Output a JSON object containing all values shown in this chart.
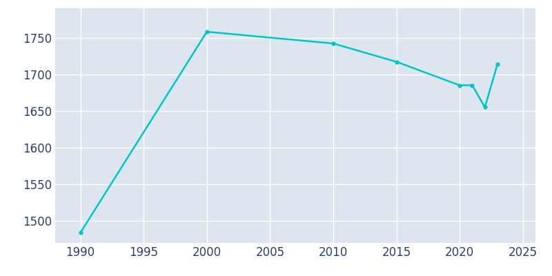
{
  "years": [
    1990,
    2000,
    2010,
    2015,
    2020,
    2021,
    2022,
    2023
  ],
  "population": [
    1484,
    1758,
    1742,
    1717,
    1685,
    1685,
    1655,
    1714
  ],
  "line_color": "#00C5C8",
  "plot_background_color": "#DDE6EF",
  "fig_background_color": "#ffffff",
  "grid_color": "#ffffff",
  "xlim": [
    1988,
    2026
  ],
  "ylim": [
    1470,
    1790
  ],
  "xticks": [
    1990,
    1995,
    2000,
    2005,
    2010,
    2015,
    2020,
    2025
  ],
  "yticks": [
    1500,
    1550,
    1600,
    1650,
    1700,
    1750
  ],
  "tick_label_color": "#2C3E6B",
  "tick_label_size": 12,
  "line_width": 1.8,
  "marker": "o",
  "marker_size": 3.5
}
